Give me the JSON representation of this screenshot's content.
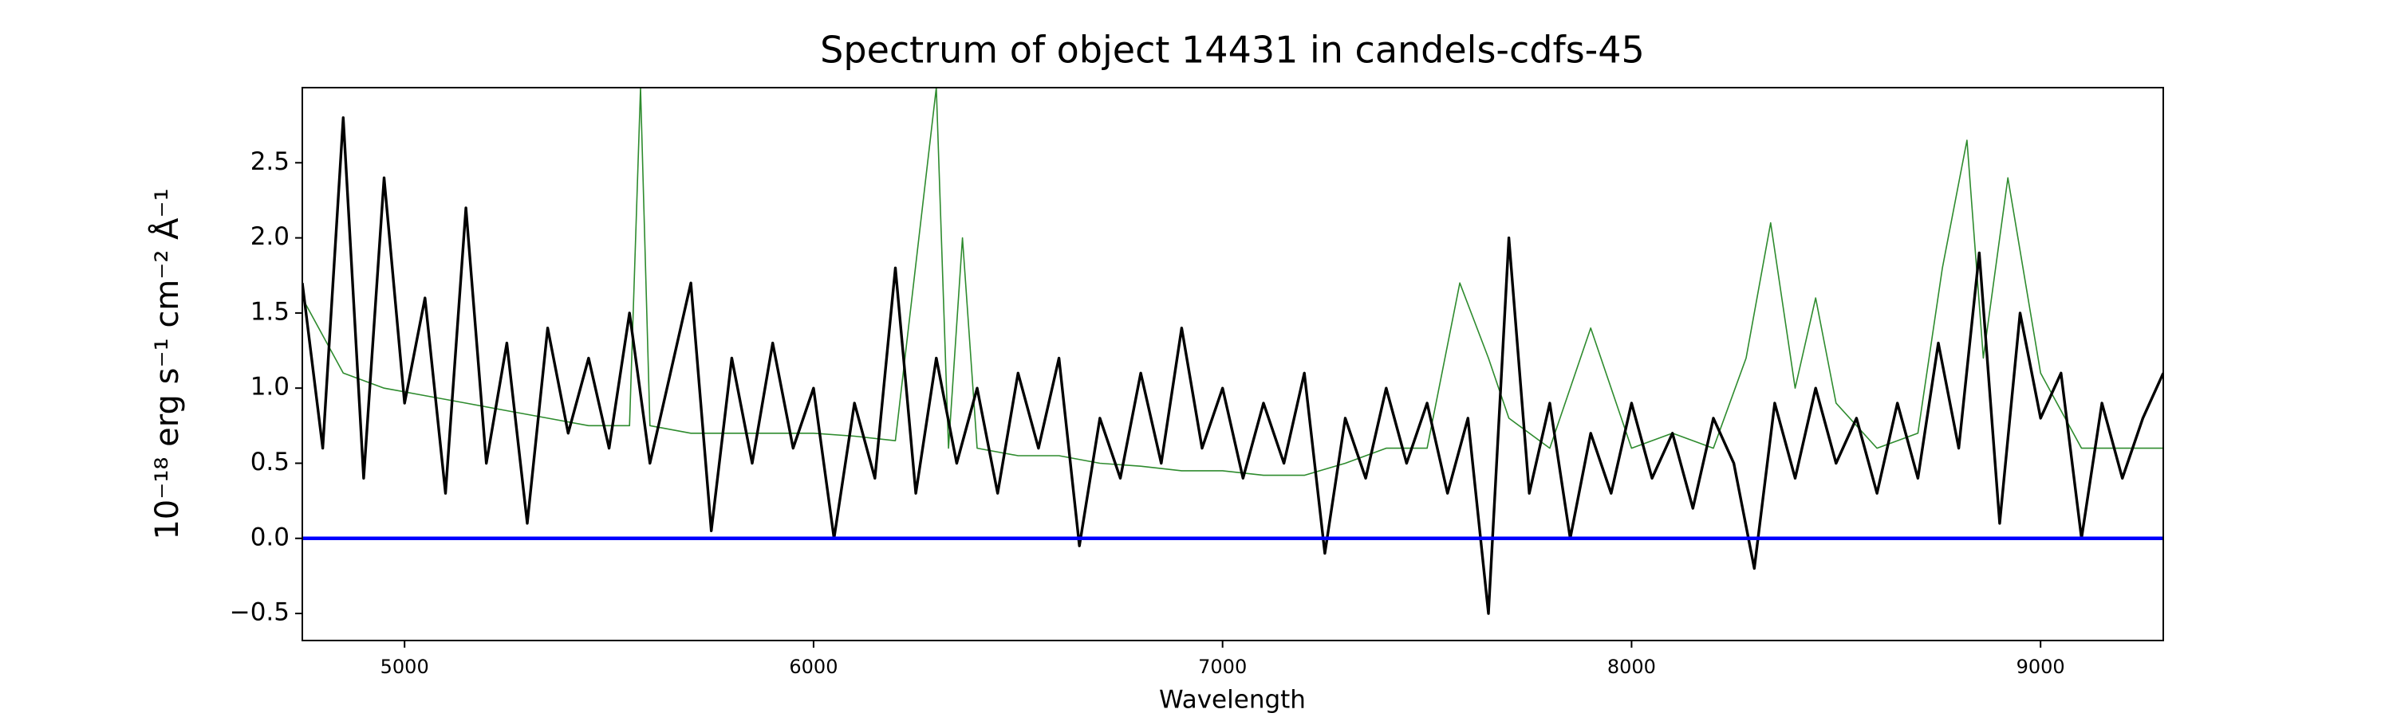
{
  "chart_data": {
    "type": "line",
    "title": "Spectrum of object 14431 in candels-cdfs-45",
    "xlabel": "Wavelength",
    "ylabel": "10⁻¹⁸ erg s⁻¹ cm⁻² Å⁻¹",
    "xlim": [
      4750,
      9300
    ],
    "ylim": [
      -0.68,
      3.0
    ],
    "xticks": [
      5000,
      6000,
      7000,
      8000,
      9000
    ],
    "yticks": [
      {
        "value": -0.5,
        "label": "−0.5"
      },
      {
        "value": 0,
        "label": "0.0"
      },
      0.5,
      {
        "value": 1,
        "label": "1.0"
      },
      1.5,
      {
        "value": 2,
        "label": "2.0"
      },
      2.5
    ],
    "grid": false,
    "series": [
      {
        "color": "#2e8b2e",
        "width": 1.6,
        "x": [
          4750,
          4850,
          4950,
          5050,
          5150,
          5250,
          5350,
          5450,
          5550,
          5577,
          5600,
          5700,
          5800,
          5900,
          6000,
          6100,
          6200,
          6300,
          6330,
          6364,
          6400,
          6500,
          6600,
          6700,
          6800,
          6900,
          7000,
          7100,
          7200,
          7300,
          7400,
          7500,
          7580,
          7650,
          7700,
          7800,
          7900,
          8000,
          8100,
          8200,
          8280,
          8340,
          8400,
          8450,
          8500,
          8600,
          8700,
          8760,
          8820,
          8860,
          8920,
          9000,
          9100,
          9200,
          9300
        ],
        "values": [
          1.6,
          1.1,
          1.0,
          0.95,
          0.9,
          0.85,
          0.8,
          0.75,
          0.75,
          3.0,
          0.75,
          0.7,
          0.7,
          0.7,
          0.7,
          0.68,
          0.65,
          3.0,
          0.6,
          2.0,
          0.6,
          0.55,
          0.55,
          0.5,
          0.48,
          0.45,
          0.45,
          0.42,
          0.42,
          0.5,
          0.6,
          0.6,
          1.7,
          1.2,
          0.8,
          0.6,
          1.4,
          0.6,
          0.7,
          0.6,
          1.2,
          2.1,
          1.0,
          1.6,
          0.9,
          0.6,
          0.7,
          1.8,
          2.65,
          1.2,
          2.4,
          1.1,
          0.6,
          0.6,
          0.6
        ]
      },
      {
        "color": "#000000",
        "width": 3.4,
        "x": [
          4750,
          4800,
          4850,
          4900,
          4950,
          5000,
          5050,
          5100,
          5150,
          5200,
          5250,
          5300,
          5350,
          5400,
          5450,
          5500,
          5550,
          5600,
          5650,
          5700,
          5750,
          5800,
          5850,
          5900,
          5950,
          6000,
          6050,
          6100,
          6150,
          6200,
          6250,
          6300,
          6350,
          6400,
          6450,
          6500,
          6550,
          6600,
          6650,
          6700,
          6750,
          6800,
          6850,
          6900,
          6950,
          7000,
          7050,
          7100,
          7150,
          7200,
          7250,
          7300,
          7350,
          7400,
          7450,
          7500,
          7550,
          7600,
          7650,
          7700,
          7750,
          7800,
          7850,
          7900,
          7950,
          8000,
          8050,
          8100,
          8150,
          8200,
          8250,
          8300,
          8350,
          8400,
          8450,
          8500,
          8550,
          8600,
          8650,
          8700,
          8750,
          8800,
          8850,
          8900,
          8950,
          9000,
          9050,
          9100,
          9150,
          9200,
          9250,
          9300
        ],
        "values": [
          1.7,
          0.6,
          2.8,
          0.4,
          2.4,
          0.9,
          1.6,
          0.3,
          2.2,
          0.5,
          1.3,
          0.1,
          1.4,
          0.7,
          1.2,
          0.6,
          1.5,
          0.5,
          1.1,
          1.7,
          0.05,
          1.2,
          0.5,
          1.3,
          0.6,
          1.0,
          0.0,
          0.9,
          0.4,
          1.8,
          0.3,
          1.2,
          0.5,
          1.0,
          0.3,
          1.1,
          0.6,
          1.2,
          -0.05,
          0.8,
          0.4,
          1.1,
          0.5,
          1.4,
          0.6,
          1.0,
          0.4,
          0.9,
          0.5,
          1.1,
          -0.1,
          0.8,
          0.4,
          1.0,
          0.5,
          0.9,
          0.3,
          0.8,
          -0.5,
          2.0,
          0.3,
          0.9,
          0.0,
          0.7,
          0.3,
          0.9,
          0.4,
          0.7,
          0.2,
          0.8,
          0.5,
          -0.2,
          0.9,
          0.4,
          1.0,
          0.5,
          0.8,
          0.3,
          0.9,
          0.4,
          1.3,
          0.6,
          1.9,
          0.1,
          1.5,
          0.8,
          1.1,
          0.0,
          0.9,
          0.4,
          0.8,
          1.1
        ]
      },
      {
        "color": "#0000ff",
        "width": 4.5,
        "x": [
          4750,
          9300
        ],
        "values": [
          0,
          0
        ]
      }
    ]
  }
}
